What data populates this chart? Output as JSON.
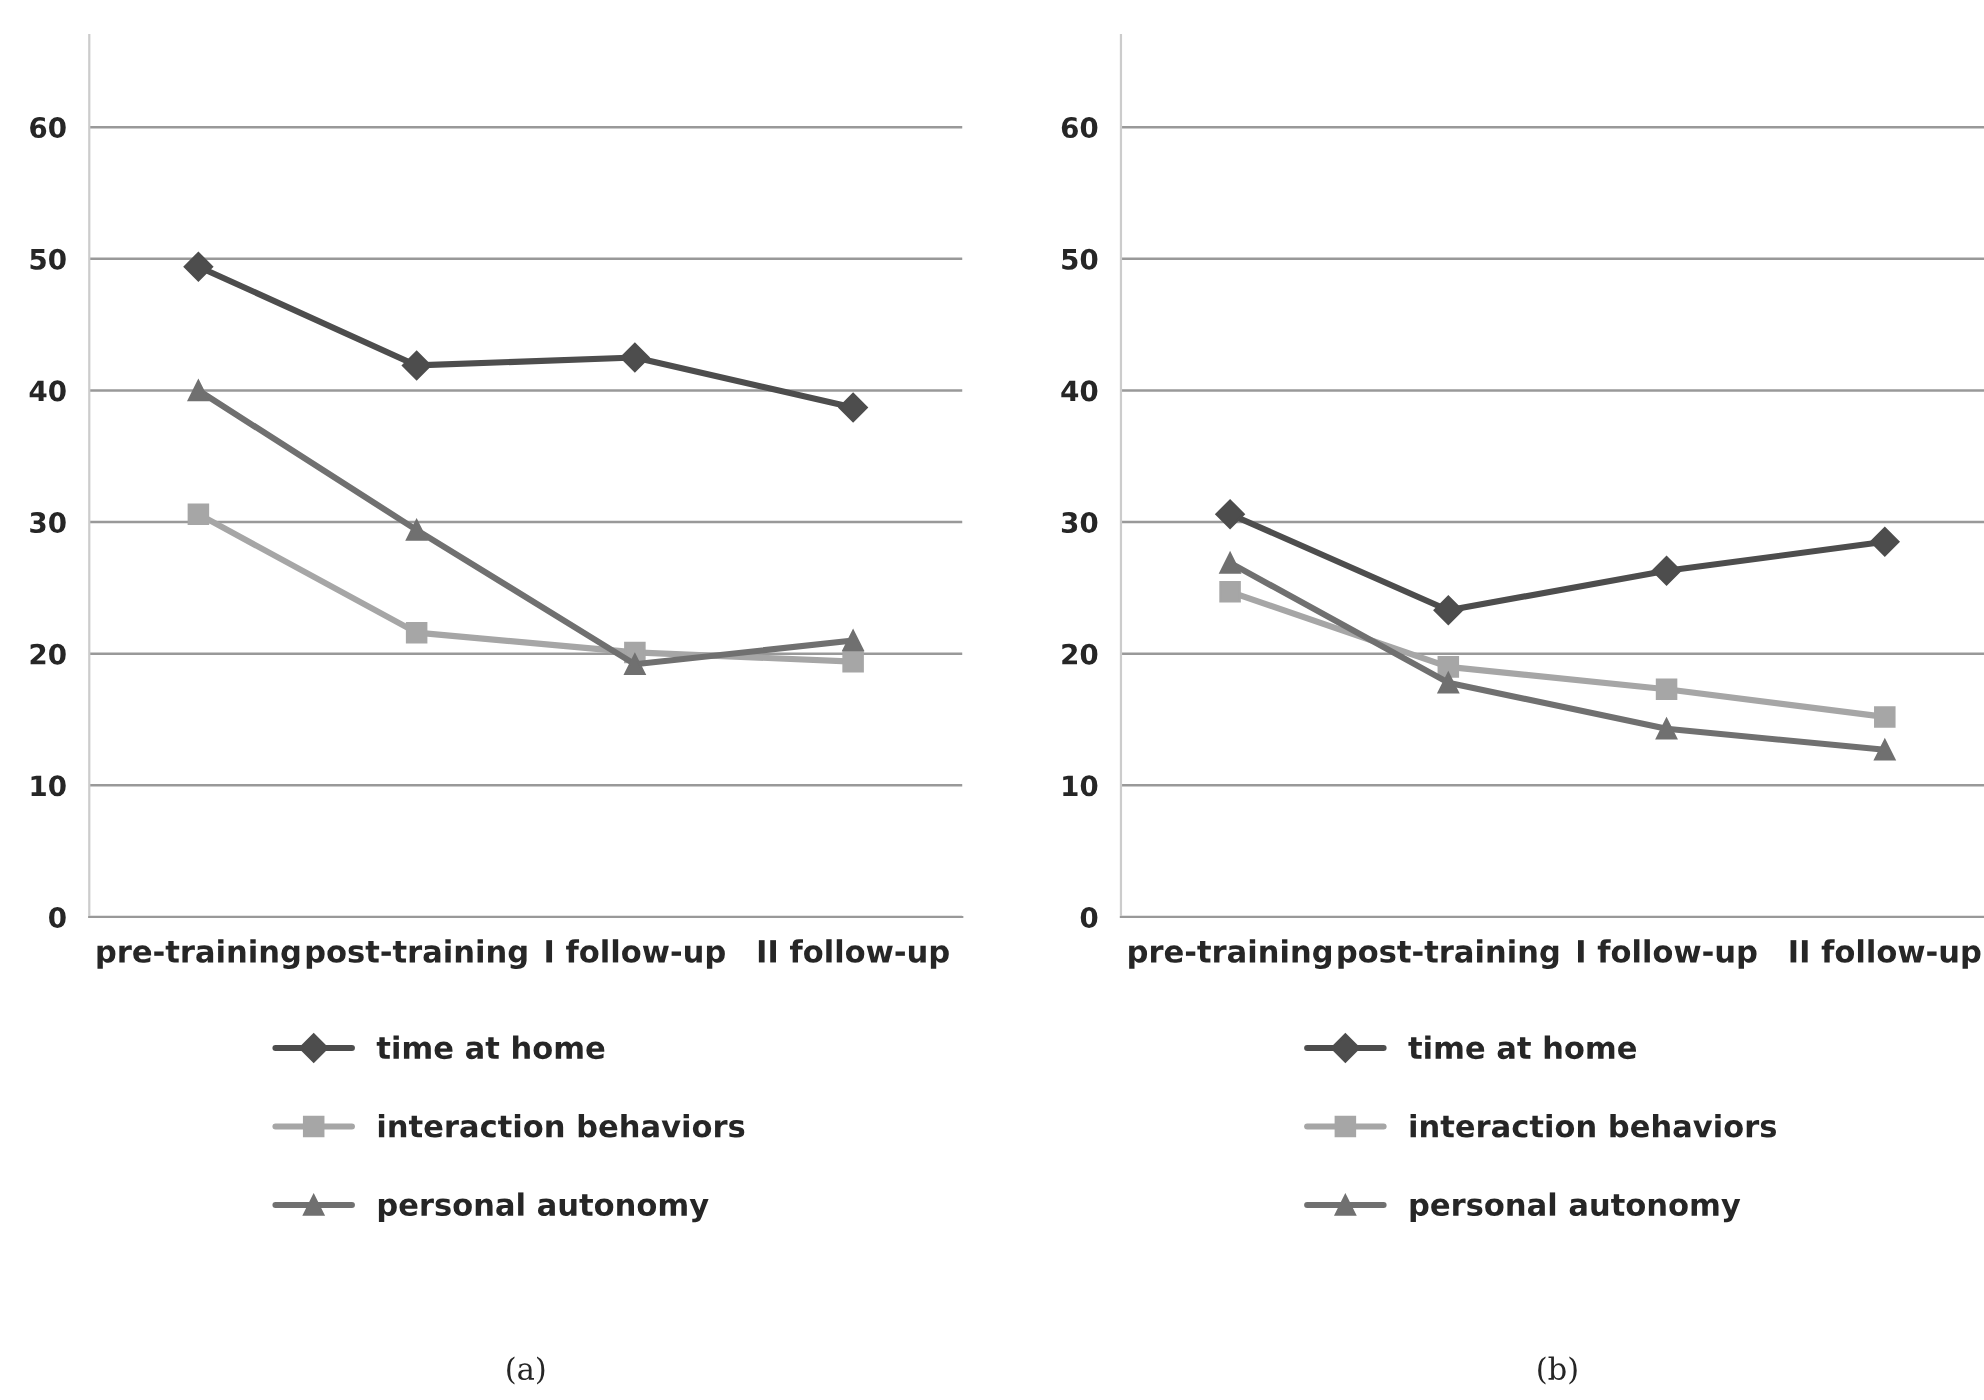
{
  "chart_data": [
    {
      "type": "line",
      "categories": [
        "pre-training",
        "post-training",
        "I follow-up",
        "II follow-up"
      ],
      "ylim": [
        0,
        67
      ],
      "yticks": [
        0,
        10,
        20,
        30,
        40,
        50,
        60
      ],
      "grid": "y",
      "legend": "bottom",
      "annotations": [
        "(a)"
      ],
      "series": [
        {
          "name": "time at home",
          "color": "#4d4d4d",
          "marker": "diamond",
          "values": [
            49.4,
            41.9,
            42.5,
            38.7
          ]
        },
        {
          "name": "interaction behaviors",
          "color": "#a6a6a6",
          "marker": "square",
          "values": [
            30.6,
            21.6,
            20.1,
            19.4
          ]
        },
        {
          "name": "personal autonomy",
          "color": "#707070",
          "marker": "triangle",
          "values": [
            40.0,
            29.4,
            19.2,
            21.0
          ]
        }
      ]
    },
    {
      "type": "line",
      "categories": [
        "pre-training",
        "post-training",
        "I follow-up",
        "II follow-up"
      ],
      "ylim": [
        0,
        67
      ],
      "yticks": [
        0,
        10,
        20,
        30,
        40,
        50,
        60
      ],
      "grid": "y",
      "legend": "bottom",
      "annotations": [
        "(b)"
      ],
      "series": [
        {
          "name": "time at home",
          "color": "#4d4d4d",
          "marker": "diamond",
          "values": [
            30.6,
            23.3,
            26.3,
            28.5
          ]
        },
        {
          "name": "interaction behaviors",
          "color": "#a6a6a6",
          "marker": "square",
          "values": [
            24.7,
            19.0,
            17.3,
            15.2
          ]
        },
        {
          "name": "personal autonomy",
          "color": "#707070",
          "marker": "triangle",
          "values": [
            26.9,
            17.8,
            14.3,
            12.7
          ]
        }
      ]
    }
  ]
}
